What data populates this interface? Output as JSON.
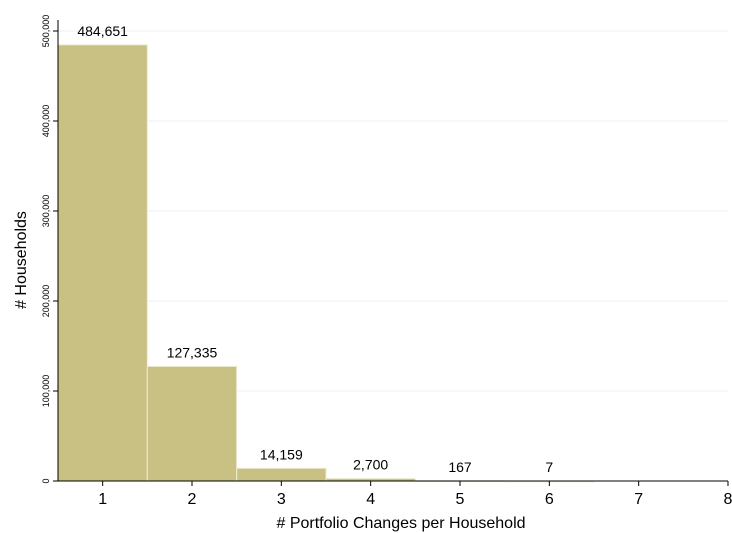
{
  "chart_data": {
    "type": "bar",
    "title": "",
    "xlabel": "# Portfolio Changes per Household",
    "ylabel": "# Households",
    "categories": [
      "1",
      "2",
      "3",
      "4",
      "5",
      "6",
      "7",
      "8"
    ],
    "x": [
      1,
      2,
      3,
      4,
      5,
      6,
      7,
      8
    ],
    "values": [
      484651,
      127335,
      14159,
      2700,
      167,
      7,
      0,
      0
    ],
    "data_labels": [
      "484,651",
      "127,335",
      "14,159",
      "2,700",
      "167",
      "7",
      "",
      ""
    ],
    "xlim": [
      0.5,
      8
    ],
    "ylim": [
      0,
      500000
    ],
    "yticks": [
      0,
      100000,
      200000,
      300000,
      400000,
      500000
    ],
    "ytick_labels": [
      "0",
      "100,000",
      "200,000",
      "300,000",
      "400,000",
      "500,000"
    ],
    "xticks": [
      1,
      2,
      3,
      4,
      5,
      6,
      7,
      8
    ],
    "xtick_labels": [
      "1",
      "2",
      "3",
      "4",
      "5",
      "6",
      "7",
      "8"
    ],
    "grid": true,
    "legend": "none",
    "colors": {
      "bar_fill": "#c9c183",
      "bar_stroke": "#efecd2",
      "grid": "#eaf0f4",
      "axis": "#000000"
    }
  }
}
